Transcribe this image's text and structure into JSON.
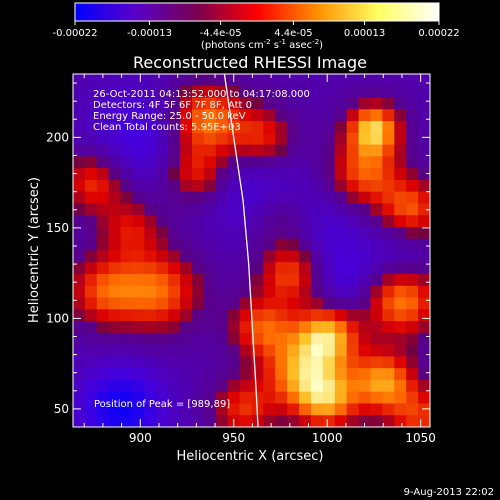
{
  "chart_data": {
    "type": "heatmap",
    "title": "Reconstructed RHESSI Image",
    "xlabel": "Heliocentric X (arcsec)",
    "ylabel": "Heliocentric Y (arcsec)",
    "xlim": [
      864,
      1055
    ],
    "ylim": [
      40,
      235
    ],
    "x_ticks": [
      "900",
      "950",
      "1000",
      "1050"
    ],
    "x_tick_values": [
      900,
      950,
      1000,
      1050
    ],
    "y_ticks": [
      "50",
      "100",
      "150",
      "200"
    ],
    "y_tick_values": [
      50,
      100,
      150,
      200
    ],
    "colorbar": {
      "range": [
        -0.00022,
        0.00022
      ],
      "tick_labels": [
        "-0.00022",
        "-0.00013",
        "-4.4e-05",
        "4.4e-05",
        "0.00013",
        "0.00022"
      ],
      "tick_values": [
        -0.00022,
        -0.00013,
        -4.4e-05,
        4.4e-05,
        0.00013,
        0.00022
      ],
      "unit_label": "(photons cm",
      "unit_exp1": "-2",
      "unit_mid": " s",
      "unit_exp2": "-1",
      "unit_mid2": " asec",
      "unit_exp3": "-2",
      "unit_close": ")",
      "colors": [
        "#0000ff",
        "#5a00c8",
        "#780050",
        "#ff0000",
        "#ff9000",
        "#ffff60",
        "#ffffff"
      ]
    },
    "annotations": {
      "time": "26-Oct-2011 04:13:52.000 to 04:17:08.000",
      "detectors": "Detectors: 4F 5F 6F 7F 8F, Att 0",
      "energy": "Energy Range: 25.0 - 50.0 keV",
      "clean": "Clean     Total counts: 5.95E+03",
      "peak": "Position of Peak = [989,89]"
    },
    "limb_points": [
      [
        945,
        235
      ],
      [
        950,
        200
      ],
      [
        955,
        165
      ],
      [
        958,
        130
      ],
      [
        960,
        95
      ],
      [
        962,
        60
      ],
      [
        963,
        40
      ]
    ],
    "grid": {
      "nx": 30,
      "ny": 30
    },
    "blobs": [
      [
        1000,
        90,
        1.0,
        12
      ],
      [
        985,
        70,
        0.8,
        14
      ],
      [
        1030,
        65,
        0.9,
        12
      ],
      [
        1040,
        110,
        0.85,
        14
      ],
      [
        1025,
        205,
        1.0,
        10
      ],
      [
        1020,
        180,
        0.75,
        14
      ],
      [
        1045,
        160,
        0.7,
        12
      ],
      [
        980,
        125,
        0.7,
        12
      ],
      [
        965,
        95,
        0.7,
        12
      ],
      [
        935,
        210,
        0.85,
        14
      ],
      [
        930,
        180,
        0.6,
        12
      ],
      [
        910,
        115,
        0.75,
        16
      ],
      [
        880,
        115,
        0.65,
        14
      ],
      [
        895,
        150,
        0.5,
        12
      ],
      [
        875,
        175,
        0.65,
        12
      ],
      [
        965,
        200,
        0.6,
        12
      ],
      [
        955,
        50,
        0.6,
        12
      ],
      [
        1000,
        55,
        0.85,
        12
      ],
      [
        1050,
        45,
        0.6,
        12
      ],
      [
        975,
        155,
        0.35,
        12
      ],
      [
        890,
        50,
        -0.65,
        16
      ],
      [
        900,
        200,
        -0.35,
        20
      ],
      [
        960,
        170,
        -0.3,
        18
      ],
      [
        1000,
        150,
        -0.25,
        18
      ],
      [
        1010,
        120,
        -0.3,
        12
      ],
      [
        1040,
        135,
        -0.25,
        12
      ]
    ],
    "base_level": -0.25
  },
  "footer": {
    "date": "9-Aug-2013 22:02"
  }
}
